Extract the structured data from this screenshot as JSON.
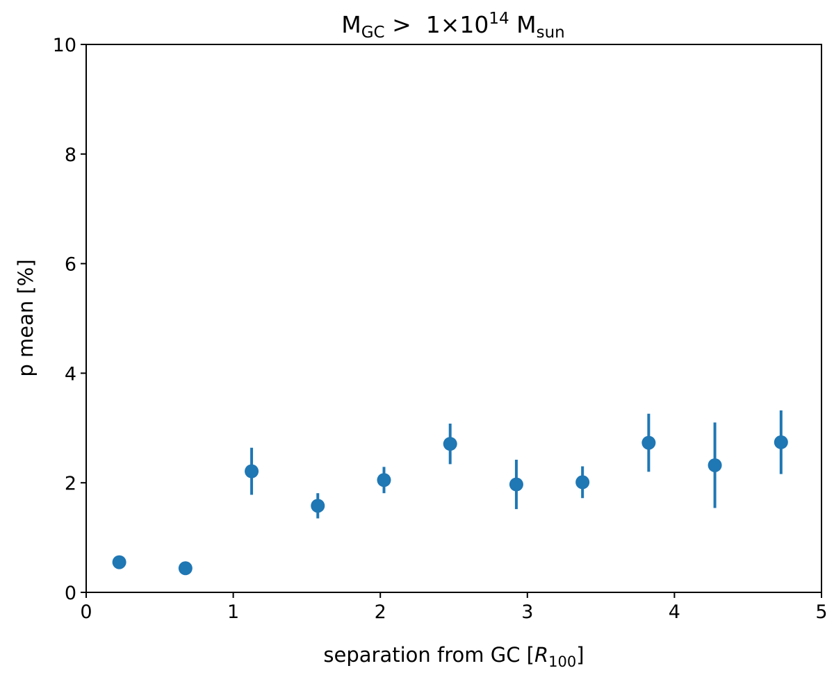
{
  "chart_data": {
    "type": "scatter",
    "title": {
      "main": "M",
      "sub1": "GC",
      "mid": " >  1×10",
      "sup": "14",
      "mid2": " M",
      "sub2": "sun"
    },
    "xlabel": {
      "main": "separation from GC [",
      "var": "R",
      "sub": "100",
      "end": "]"
    },
    "ylabel": "p mean [%]",
    "xlim": [
      0,
      5
    ],
    "ylim": [
      0,
      10
    ],
    "xticks": [
      0,
      1,
      2,
      3,
      4,
      5
    ],
    "xtick_labels": [
      "0",
      "1",
      "2",
      "3",
      "4",
      "5"
    ],
    "yticks": [
      0,
      2,
      4,
      6,
      8,
      10
    ],
    "ytick_labels": [
      "0",
      "2",
      "4",
      "6",
      "8",
      "10"
    ],
    "grid": false,
    "marker_color": "#1f77b4",
    "series": [
      {
        "points": [
          {
            "x": 0.225,
            "y": 0.55,
            "err": 0.0
          },
          {
            "x": 0.675,
            "y": 0.44,
            "err": 0.0
          },
          {
            "x": 1.125,
            "y": 2.21,
            "err": 0.43
          },
          {
            "x": 1.575,
            "y": 1.58,
            "err": 0.23
          },
          {
            "x": 2.025,
            "y": 2.05,
            "err": 0.24
          },
          {
            "x": 2.475,
            "y": 2.71,
            "err": 0.37
          },
          {
            "x": 2.925,
            "y": 1.97,
            "err": 0.45
          },
          {
            "x": 3.375,
            "y": 2.01,
            "err": 0.29
          },
          {
            "x": 3.825,
            "y": 2.73,
            "err": 0.53
          },
          {
            "x": 4.275,
            "y": 2.32,
            "err": 0.78
          },
          {
            "x": 4.725,
            "y": 2.74,
            "err": 0.58
          }
        ]
      }
    ]
  }
}
